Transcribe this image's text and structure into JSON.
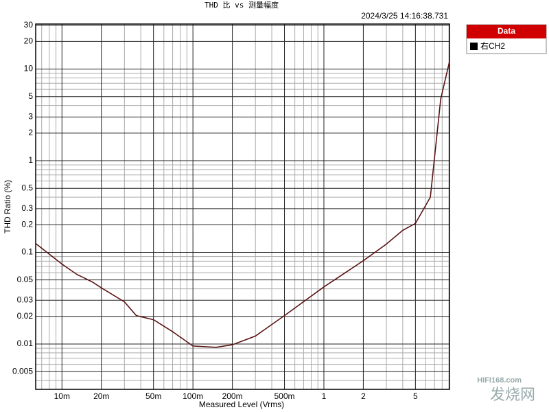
{
  "chart_data": {
    "type": "line",
    "title": "THD 比 vs 测量幅度",
    "timestamp": "2024/3/25 14:16:38.731",
    "x_label": "Measured Level (Vrms)",
    "y_label": "THD Ratio (%)",
    "log_x": true,
    "log_y": true,
    "grid": true,
    "xlim": [
      0.0063,
      9.1
    ],
    "ylim": [
      0.0032,
      31
    ],
    "xticks": [
      {
        "value": 0.01,
        "label": "10m"
      },
      {
        "value": 0.02,
        "label": "20m"
      },
      {
        "value": 0.05,
        "label": "50m"
      },
      {
        "value": 0.1,
        "label": "100m"
      },
      {
        "value": 0.2,
        "label": "200m"
      },
      {
        "value": 0.5,
        "label": "500m"
      },
      1,
      2,
      5
    ],
    "yticks": [
      30,
      20,
      10,
      5,
      3,
      2,
      1,
      0.5,
      0.3,
      0.2,
      0.1,
      0.05,
      0.03,
      0.02,
      0.01,
      0.005
    ],
    "xgrid": [
      0.007,
      0.008,
      0.009,
      0.03,
      0.04,
      0.06,
      0.07,
      0.08,
      0.09,
      0.3,
      0.4,
      0.6,
      0.7,
      0.8,
      0.9,
      3,
      4,
      6,
      7,
      8,
      9
    ],
    "ygrid": [
      0.004,
      0.006,
      0.007,
      0.008,
      0.009,
      0.04,
      0.06,
      0.07,
      0.08,
      0.09,
      0.4,
      0.6,
      0.7,
      0.8,
      0.9,
      4,
      6,
      7,
      8,
      9
    ],
    "legend_title": "Data",
    "legend": "top-right",
    "series": [
      {
        "name": "右CH2",
        "color": "#5a1212",
        "x": [
          0.0063,
          0.01,
          0.013,
          0.017,
          0.02,
          0.03,
          0.037,
          0.05,
          0.07,
          0.1,
          0.15,
          0.2,
          0.3,
          0.5,
          1,
          2,
          3,
          4,
          5,
          6.5,
          7.8,
          9.1
        ],
        "values": [
          0.125,
          0.0745,
          0.0575,
          0.0476,
          0.041,
          0.0288,
          0.0204,
          0.0184,
          0.0136,
          0.0095,
          0.0092,
          0.0098,
          0.0122,
          0.0204,
          0.042,
          0.081,
          0.123,
          0.174,
          0.207,
          0.4,
          4.7,
          12.1
        ]
      }
    ],
    "watermark": [
      "HIFI168.com",
      "发烧网"
    ]
  }
}
